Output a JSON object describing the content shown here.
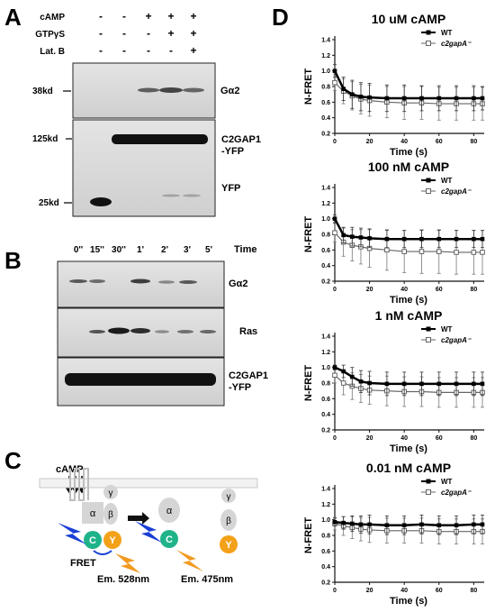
{
  "panel_letters": {
    "a": "A",
    "b": "B",
    "c": "C",
    "d": "D"
  },
  "panel_a": {
    "row_labels": [
      "cAMP",
      "GTPγS",
      "Lat. B"
    ],
    "lane_signs": [
      [
        "-",
        "-",
        "+",
        "+",
        "+"
      ],
      [
        "-",
        "-",
        "-",
        "+",
        "+"
      ],
      [
        "-",
        "-",
        "-",
        "-",
        "+"
      ]
    ],
    "mw_markers": [
      "38kd",
      "125kd",
      "25kd"
    ],
    "blot_labels": [
      "Gα2",
      "C2GAP1\n-YFP",
      "YFP"
    ]
  },
  "panel_b": {
    "time_header": "Time",
    "time_points": [
      "0''",
      "15''",
      "30''",
      "1'",
      "2'",
      "3'",
      "5'"
    ],
    "blot_labels": [
      "Gα2",
      "Ras",
      "C2GAP1\n-YFP"
    ]
  },
  "panel_c": {
    "camp_label": "cAMP",
    "subunit_labels": {
      "alpha": "α",
      "beta": "β",
      "gamma": "γ",
      "cfp": "C",
      "yfp": "Y"
    },
    "fret_label": "FRET",
    "emission_labels": [
      "Em. 528nm",
      "Em. 475nm"
    ]
  },
  "panel_d": {
    "chart_data": [
      {
        "type": "scatter",
        "title": "10 uM cAMP",
        "xlabel": "Time (s)",
        "ylabel": "N-FRET",
        "xlim": [
          0,
          85
        ],
        "ylim": [
          0.2,
          1.4
        ],
        "xticks": [
          0,
          20,
          40,
          60,
          80
        ],
        "yticks": [
          "0.2",
          "0.4",
          "0.6",
          "0.8",
          "1.0",
          "1.2",
          "1.4"
        ],
        "legend": "top-right",
        "series": [
          {
            "name": "WT",
            "x": [
              0,
              5,
              10,
              15,
              20,
              30,
              40,
              50,
              60,
              70,
              80,
              85
            ],
            "values": [
              1.0,
              0.77,
              0.7,
              0.67,
              0.66,
              0.65,
              0.65,
              0.65,
              0.65,
              0.65,
              0.65,
              0.65
            ],
            "err": [
              0.08,
              0.15,
              0.18,
              0.18,
              0.18,
              0.17,
              0.17,
              0.16,
              0.16,
              0.16,
              0.16,
              0.15
            ]
          },
          {
            "name": "c2gapA⁻",
            "x": [
              0,
              5,
              10,
              15,
              20,
              30,
              40,
              50,
              60,
              70,
              80,
              85
            ],
            "values": [
              0.85,
              0.74,
              0.68,
              0.64,
              0.62,
              0.6,
              0.59,
              0.59,
              0.58,
              0.58,
              0.58,
              0.58
            ],
            "err": [
              0.1,
              0.16,
              0.18,
              0.19,
              0.2,
              0.2,
              0.21,
              0.21,
              0.21,
              0.21,
              0.21,
              0.21
            ]
          }
        ]
      },
      {
        "type": "scatter",
        "title": "100 nM cAMP",
        "xlabel": "Time (s)",
        "ylabel": "N-FRET",
        "xlim": [
          0,
          85
        ],
        "ylim": [
          0.2,
          1.4
        ],
        "xticks": [
          0,
          20,
          40,
          60,
          80
        ],
        "yticks": [
          "0.2",
          "0.4",
          "0.6",
          "0.8",
          "1.0",
          "1.2",
          "1.4"
        ],
        "legend": "top-right",
        "series": [
          {
            "name": "WT",
            "x": [
              0,
              5,
              10,
              15,
              20,
              30,
              40,
              50,
              60,
              70,
              80,
              85
            ],
            "values": [
              1.0,
              0.79,
              0.77,
              0.76,
              0.75,
              0.74,
              0.74,
              0.74,
              0.74,
              0.74,
              0.74,
              0.74
            ],
            "err": [
              0.05,
              0.1,
              0.12,
              0.12,
              0.12,
              0.11,
              0.11,
              0.11,
              0.11,
              0.11,
              0.11,
              0.11
            ]
          },
          {
            "name": "c2gapA⁻",
            "x": [
              0,
              5,
              10,
              15,
              20,
              30,
              40,
              50,
              60,
              70,
              80,
              85
            ],
            "values": [
              0.82,
              0.7,
              0.66,
              0.64,
              0.62,
              0.6,
              0.58,
              0.58,
              0.58,
              0.57,
              0.57,
              0.57
            ],
            "err": [
              0.12,
              0.18,
              0.2,
              0.22,
              0.24,
              0.26,
              0.27,
              0.28,
              0.28,
              0.28,
              0.28,
              0.28
            ]
          }
        ]
      },
      {
        "type": "scatter",
        "title": "1 nM cAMP",
        "xlabel": "Time (s)",
        "ylabel": "N-FRET",
        "xlim": [
          0,
          85
        ],
        "ylim": [
          0.2,
          1.4
        ],
        "xticks": [
          0,
          20,
          40,
          60,
          80
        ],
        "yticks": [
          "0.2",
          "0.4",
          "0.6",
          "0.8",
          "1.0",
          "1.2",
          "1.4"
        ],
        "legend": "top-right",
        "series": [
          {
            "name": "WT",
            "x": [
              0,
              5,
              10,
              15,
              20,
              30,
              40,
              50,
              60,
              70,
              80,
              85
            ],
            "values": [
              1.0,
              0.95,
              0.88,
              0.82,
              0.8,
              0.79,
              0.79,
              0.79,
              0.79,
              0.79,
              0.79,
              0.79
            ],
            "err": [
              0.03,
              0.08,
              0.12,
              0.14,
              0.15,
              0.15,
              0.15,
              0.15,
              0.15,
              0.15,
              0.15,
              0.15
            ]
          },
          {
            "name": "c2gapA⁻",
            "x": [
              0,
              5,
              10,
              15,
              20,
              30,
              40,
              50,
              60,
              70,
              80,
              85
            ],
            "values": [
              0.9,
              0.8,
              0.76,
              0.73,
              0.71,
              0.7,
              0.69,
              0.69,
              0.68,
              0.68,
              0.68,
              0.68
            ],
            "err": [
              0.1,
              0.15,
              0.17,
              0.18,
              0.18,
              0.19,
              0.19,
              0.19,
              0.19,
              0.19,
              0.19,
              0.19
            ]
          }
        ]
      },
      {
        "type": "scatter",
        "title": "0.01 nM cAMP",
        "xlabel": "Time (s)",
        "ylabel": "N-FRET",
        "xlim": [
          0,
          85
        ],
        "ylim": [
          0.2,
          1.4
        ],
        "xticks": [
          0,
          20,
          40,
          60,
          80
        ],
        "yticks": [
          "0.2",
          "0.4",
          "0.6",
          "0.8",
          "1.0",
          "1.2",
          "1.4"
        ],
        "legend": "top-right",
        "series": [
          {
            "name": "WT",
            "x": [
              0,
              5,
              10,
              15,
              20,
              30,
              40,
              50,
              60,
              70,
              80,
              85
            ],
            "values": [
              0.97,
              0.96,
              0.95,
              0.94,
              0.94,
              0.93,
              0.93,
              0.94,
              0.93,
              0.93,
              0.94,
              0.94
            ],
            "err": [
              0.05,
              0.08,
              0.1,
              0.11,
              0.12,
              0.12,
              0.12,
              0.12,
              0.12,
              0.12,
              0.12,
              0.12
            ]
          },
          {
            "name": "c2gapA⁻",
            "x": [
              0,
              5,
              10,
              15,
              20,
              30,
              40,
              50,
              60,
              70,
              80,
              85
            ],
            "values": [
              0.95,
              0.92,
              0.9,
              0.88,
              0.87,
              0.86,
              0.86,
              0.86,
              0.85,
              0.85,
              0.85,
              0.85
            ],
            "err": [
              0.08,
              0.12,
              0.14,
              0.15,
              0.16,
              0.16,
              0.16,
              0.16,
              0.16,
              0.16,
              0.16,
              0.16
            ]
          }
        ]
      }
    ]
  },
  "colors": {
    "cfp": "#1fb38a",
    "yfp": "#f4a11a",
    "subunit": "#d5d5d5",
    "lightning_blue": "#1a3fd6",
    "lightning_orange": "#f29a20"
  }
}
